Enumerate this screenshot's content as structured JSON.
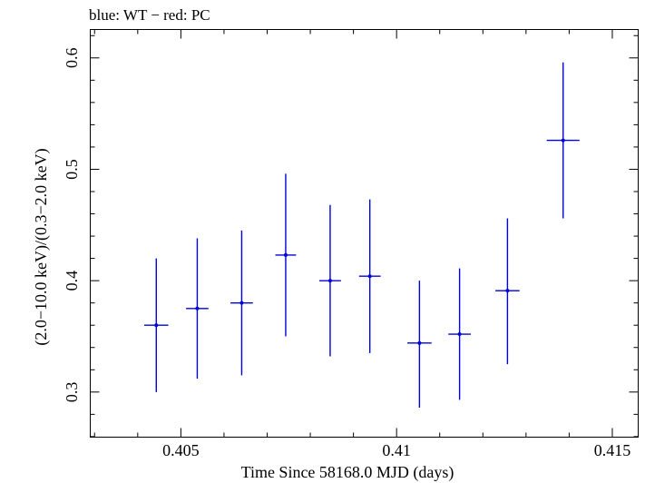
{
  "chart_data": {
    "type": "scatter",
    "title": "blue: WT − red: PC",
    "xlabel": "Time Since 58168.0 MJD (days)",
    "ylabel": "(2.0−10.0 keV)/(0.3−2.0 keV)",
    "xlim": [
      0.4029,
      0.4156
    ],
    "ylim": [
      0.2595,
      0.6255
    ],
    "x_ticks": [
      0.405,
      0.41,
      0.415
    ],
    "x_tick_labels": [
      "0.405",
      "0.41",
      "0.415"
    ],
    "x_minor_step": 0.001,
    "y_ticks": [
      0.3,
      0.4,
      0.5,
      0.6
    ],
    "y_tick_labels": [
      "0.3",
      "0.4",
      "0.5",
      "0.6"
    ],
    "y_minor_step": 0.02,
    "grid": false,
    "series": [
      {
        "color": "#0000dd",
        "points": [
          {
            "x": 0.40443,
            "xerr": 0.00028,
            "y": 0.36,
            "yerr_low": 0.06,
            "yerr_high": 0.06
          },
          {
            "x": 0.40538,
            "xerr": 0.00026,
            "y": 0.375,
            "yerr_low": 0.063,
            "yerr_high": 0.063
          },
          {
            "x": 0.40641,
            "xerr": 0.00026,
            "y": 0.38,
            "yerr_low": 0.065,
            "yerr_high": 0.065
          },
          {
            "x": 0.40743,
            "xerr": 0.00024,
            "y": 0.423,
            "yerr_low": 0.073,
            "yerr_high": 0.073
          },
          {
            "x": 0.40846,
            "xerr": 0.00025,
            "y": 0.4,
            "yerr_low": 0.068,
            "yerr_high": 0.068
          },
          {
            "x": 0.40938,
            "xerr": 0.00025,
            "y": 0.404,
            "yerr_low": 0.069,
            "yerr_high": 0.069
          },
          {
            "x": 0.41053,
            "xerr": 0.00028,
            "y": 0.344,
            "yerr_low": 0.058,
            "yerr_high": 0.056
          },
          {
            "x": 0.41146,
            "xerr": 0.00026,
            "y": 0.352,
            "yerr_low": 0.059,
            "yerr_high": 0.059
          },
          {
            "x": 0.41257,
            "xerr": 0.00028,
            "y": 0.391,
            "yerr_low": 0.066,
            "yerr_high": 0.065
          },
          {
            "x": 0.41386,
            "xerr": 0.00038,
            "y": 0.526,
            "yerr_low": 0.07,
            "yerr_high": 0.07
          }
        ]
      }
    ]
  }
}
